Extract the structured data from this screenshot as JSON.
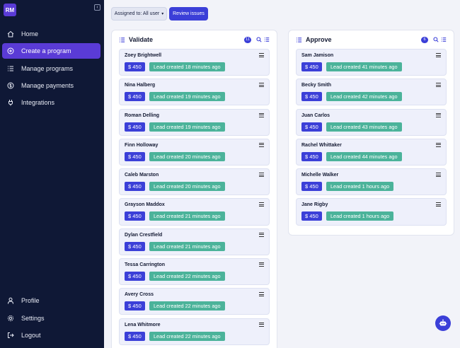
{
  "user": {
    "initials": "RM"
  },
  "sidebar": {
    "items": [
      {
        "label": "Home",
        "icon": "home-icon",
        "active": false
      },
      {
        "label": "Create a program",
        "icon": "plus-circle-icon",
        "active": true
      },
      {
        "label": "Manage programs",
        "icon": "list-icon",
        "active": false
      },
      {
        "label": "Manage payments",
        "icon": "dollar-circle-icon",
        "active": false
      },
      {
        "label": "Integrations",
        "icon": "plug-icon",
        "active": false
      }
    ],
    "bottom": [
      {
        "label": "Profile",
        "icon": "user-icon"
      },
      {
        "label": "Settings",
        "icon": "gear-icon"
      },
      {
        "label": "Logout",
        "icon": "logout-icon"
      }
    ]
  },
  "toolbar": {
    "filter_label": "Assigned to: All user",
    "review_label": "Review issues"
  },
  "columns": {
    "validate": {
      "title": "Validate",
      "count": "11",
      "cards": [
        {
          "name": "Zoey Brightwell",
          "amount": "$ 450",
          "status": "Lead created 18 minutes ago"
        },
        {
          "name": "Nina Halberg",
          "amount": "$ 450",
          "status": "Lead created 19 minutes ago"
        },
        {
          "name": "Roman Delling",
          "amount": "$ 450",
          "status": "Lead created 19 minutes ago"
        },
        {
          "name": "Finn Holloway",
          "amount": "$ 450",
          "status": "Lead created 20 minutes ago"
        },
        {
          "name": "Caleb Marston",
          "amount": "$ 450",
          "status": "Lead created 20 minutes ago"
        },
        {
          "name": "Grayson Maddox",
          "amount": "$ 450",
          "status": "Lead created 21 minutes ago"
        },
        {
          "name": "Dylan Crestfield",
          "amount": "$ 450",
          "status": "Lead created 21 minutes ago"
        },
        {
          "name": "Tessa Carrington",
          "amount": "$ 450",
          "status": "Lead created 22 minutes ago"
        },
        {
          "name": "Avery Cross",
          "amount": "$ 450",
          "status": "Lead created 22 minutes ago"
        },
        {
          "name": "Lena Whitmore",
          "amount": "$ 450",
          "status": "Lead created 22 minutes ago"
        }
      ]
    },
    "approve": {
      "title": "Approve",
      "count": "6",
      "cards": [
        {
          "name": "Sam Jamison",
          "amount": "$ 450",
          "status": "Lead created 41 minutes ago"
        },
        {
          "name": "Becky Smith",
          "amount": "$ 450",
          "status": "Lead created 42 minutes ago"
        },
        {
          "name": "Juan Carlos",
          "amount": "$ 450",
          "status": "Lead created 43 minutes ago"
        },
        {
          "name": "Rachel Whittaker",
          "amount": "$ 450",
          "status": "Lead created 44 minutes ago"
        },
        {
          "name": "Michelle Walker",
          "amount": "$ 450",
          "status": "Lead created 1 hours ago"
        },
        {
          "name": "Jane Rigby",
          "amount": "$ 450",
          "status": "Lead created 1 hours ago"
        }
      ]
    }
  },
  "colors": {
    "sidebar_bg": "#0f1836",
    "accent": "#5a3bd6",
    "primary": "#3b3fd8",
    "lead_badge": "#4bb39a"
  },
  "chatbot": {
    "icon": "robot-icon"
  }
}
